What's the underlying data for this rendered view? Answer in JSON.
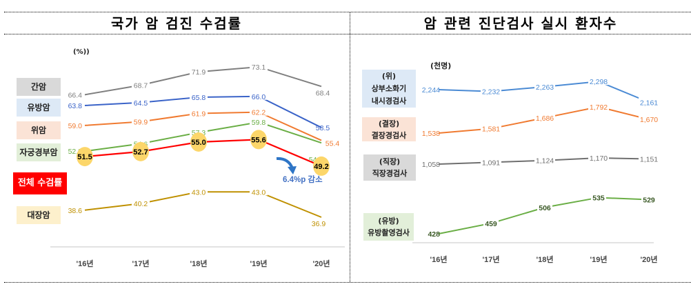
{
  "left_panel": {
    "title": "국가 암 검진 수검률",
    "unit": "(%))",
    "legend": [
      {
        "label": "간암",
        "bg": "#d9d9d9",
        "color": "#222222"
      },
      {
        "label": "유방암",
        "bg": "#dde9f6",
        "color": "#222222"
      },
      {
        "label": "위암",
        "bg": "#fbe3d6",
        "color": "#222222"
      },
      {
        "label": "자궁경부암",
        "bg": "#e2efd9",
        "color": "#222222"
      },
      {
        "label": "전체 수검률",
        "bg": "#ff0000",
        "color": "#ffffff"
      },
      {
        "label": "대장암",
        "bg": "#fdf0cc",
        "color": "#222222"
      }
    ],
    "annotation": "6.4%p 감소"
  },
  "right_panel": {
    "title": "암 관련 진단검사 실시 환자수",
    "unit": "(천명)",
    "legend": [
      {
        "line1": "(위)",
        "line2": "상부소화기",
        "line3": "내시경검사",
        "bg": "#dde9f6"
      },
      {
        "line1": "(결장)",
        "line2": "결장경검사",
        "line3": "",
        "bg": "#fbe3d6"
      },
      {
        "line1": "(직장)",
        "line2": "직장경검사",
        "line3": "",
        "bg": "#d9d9d9"
      },
      {
        "line1": "(유방)",
        "line2": "유방촬영검사",
        "line3": "",
        "bg": "#e2efd9"
      }
    ]
  },
  "chart_data": [
    {
      "type": "line",
      "title": "국가 암 검진 수검률",
      "ylabel": "(%)",
      "categories": [
        "'16년",
        "'17년",
        "'18년",
        "'19년",
        "'20년"
      ],
      "ylim": [
        35,
        75
      ],
      "grid": false,
      "legend_placement": "left",
      "series": [
        {
          "name": "간암",
          "color": "#7f7f7f",
          "values": [
            66.4,
            68.7,
            71.9,
            73.1,
            68.4
          ],
          "labels": [
            "66.4",
            "68.7",
            "71.9",
            "73.1",
            "68.4"
          ]
        },
        {
          "name": "유방암",
          "color": "#3a63c8",
          "values": [
            63.8,
            64.5,
            65.8,
            66.0,
            58.5
          ],
          "labels": [
            "63.8",
            "64.5",
            "65.8",
            "66.0",
            "58.5"
          ]
        },
        {
          "name": "위암",
          "color": "#f07a30",
          "values": [
            59.0,
            59.9,
            61.9,
            62.2,
            55.4
          ],
          "labels": [
            "59.0",
            "59.9",
            "61.9",
            "62.2",
            "55.4"
          ]
        },
        {
          "name": "자궁경부암",
          "color": "#6aae45",
          "values": [
            52.8,
            54.6,
            57.3,
            59.8,
            54.8
          ],
          "labels": [
            "52.8",
            "54.6",
            "57.3",
            "59.8",
            "54.8"
          ]
        },
        {
          "name": "전체 수검률",
          "color": "#ff0000",
          "values": [
            51.5,
            52.7,
            55.0,
            55.6,
            49.2
          ],
          "labels": [
            "51.5",
            "52.7",
            "55.0",
            "55.6",
            "49.2"
          ],
          "highlight": true
        },
        {
          "name": "대장암",
          "color": "#bf9000",
          "values": [
            38.6,
            40.2,
            43.0,
            43.0,
            36.9
          ],
          "labels": [
            "38.6",
            "40.2",
            "43.0",
            "43.0",
            "36.9"
          ]
        }
      ],
      "annotations": [
        "6.4%p 감소"
      ]
    },
    {
      "type": "line",
      "title": "암 관련 진단검사 실시 환자수",
      "ylabel": "(천명)",
      "categories": [
        "'16년",
        "'17년",
        "'18년",
        "'19년",
        "'20년"
      ],
      "grid": false,
      "legend_placement": "left",
      "series": [
        {
          "name": "(위) 상부소화기 내시경검사",
          "color": "#4a8ad4",
          "values": [
            2244,
            2232,
            2263,
            2298,
            2161
          ],
          "labels": [
            "2,244",
            "2,232",
            "2,263",
            "2,298",
            "2,161"
          ]
        },
        {
          "name": "(결장) 결장경검사",
          "color": "#f07a30",
          "values": [
            1538,
            1581,
            1686,
            1792,
            1670
          ],
          "labels": [
            "1,538",
            "1,581",
            "1,686",
            "1,792",
            "1,670"
          ]
        },
        {
          "name": "(직장) 직장경검사",
          "color": "#6f6f6f",
          "values": [
            1058,
            1091,
            1124,
            1170,
            1151
          ],
          "labels": [
            "1,058",
            "1,091",
            "1,124",
            "1,170",
            "1,151"
          ]
        },
        {
          "name": "(유방) 유방촬영검사",
          "color": "#6aae45",
          "values": [
            428,
            459,
            506,
            535,
            529
          ],
          "labels": [
            "428",
            "459",
            "506",
            "535",
            "529"
          ]
        }
      ]
    }
  ]
}
